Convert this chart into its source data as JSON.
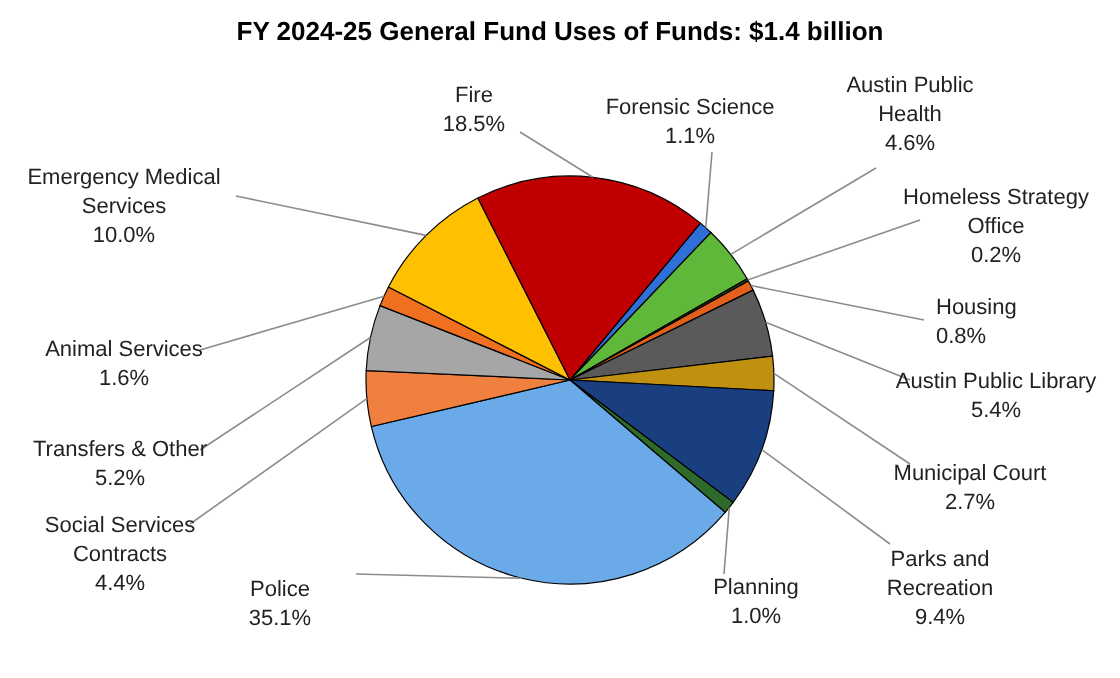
{
  "chart_data": {
    "type": "pie",
    "title": "FY 2024-25 General Fund Uses of Funds: $1.4 billion",
    "categories": [
      "Forensic Science",
      "Austin Public Health",
      "Homeless Strategy Office",
      "Housing",
      "Austin Public Library",
      "Municipal Court",
      "Parks and Recreation",
      "Planning",
      "Police",
      "Social Services Contracts",
      "Transfers & Other",
      "Animal Services",
      "Emergency Medical Services",
      "Fire"
    ],
    "values": [
      1.1,
      4.6,
      0.2,
      0.8,
      5.4,
      2.7,
      9.4,
      1.0,
      35.1,
      4.4,
      5.2,
      1.6,
      10.0,
      18.5
    ],
    "value_labels": [
      "1.1%",
      "4.6%",
      "0.2%",
      "0.8%",
      "5.4%",
      "2.7%",
      "9.4%",
      "1.0%",
      "35.1%",
      "4.4%",
      "5.2%",
      "1.6%",
      "10.0%",
      "18.5%"
    ],
    "colors": [
      "#2f6fd8",
      "#5fb83a",
      "#1f3f1f",
      "#e0601c",
      "#5a5a5a",
      "#c09010",
      "#1a3f80",
      "#2e6a2a",
      "#6aaae8",
      "#f08040",
      "#a6a6a6",
      "#f07020",
      "#ffc000",
      "#c00000"
    ]
  }
}
